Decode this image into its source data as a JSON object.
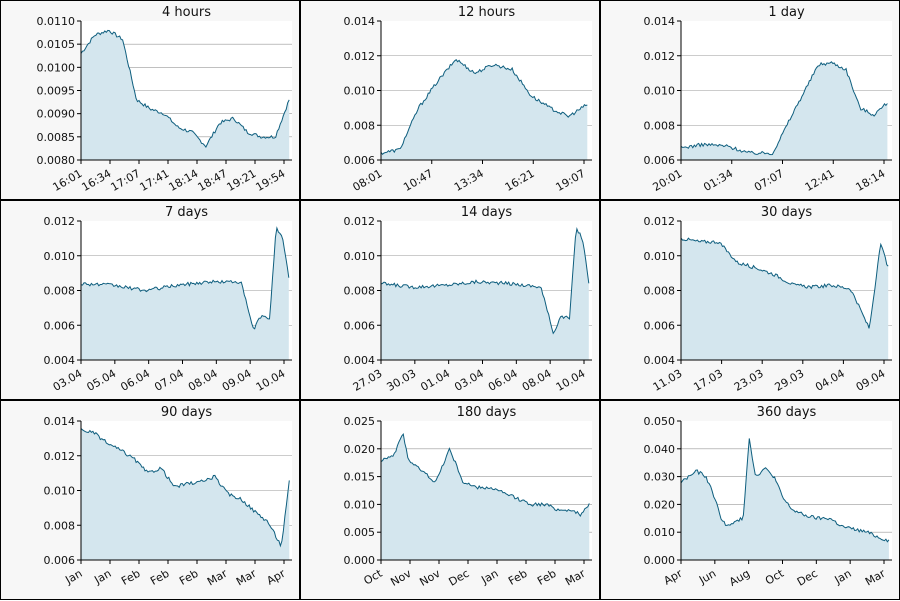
{
  "colors": {
    "line": "#0e5e7e",
    "fill": "#d4e6ee",
    "plot_bg": "#ffffff",
    "grid": "#9a9a9a",
    "axis": "#000000",
    "panel_bg": "#f7f7f7"
  },
  "chart_data": [
    {
      "type": "area",
      "title": "4 hours",
      "xticks": [
        "16:01",
        "16:34",
        "17:07",
        "17:41",
        "18:14",
        "18:47",
        "19:21",
        "19:54"
      ],
      "yticks": [
        "0.0080",
        "0.0085",
        "0.0090",
        "0.0095",
        "0.0100",
        "0.0105",
        "0.0110"
      ],
      "ylim": [
        0.008,
        0.011
      ],
      "x": [
        0,
        0.5,
        1,
        1.5,
        2,
        2.5,
        3,
        3.5,
        4,
        4.5,
        5,
        5.5,
        6,
        6.5,
        7,
        7.5
      ],
      "y": [
        0.0103,
        0.0107,
        0.0108,
        0.0106,
        0.0093,
        0.0091,
        0.009,
        0.0087,
        0.0086,
        0.0083,
        0.0088,
        0.0089,
        0.0086,
        0.0085,
        0.0085,
        0.0093
      ],
      "xlim": [
        0,
        7.6
      ]
    },
    {
      "type": "area",
      "title": "12 hours",
      "xticks": [
        "08:01",
        "10:47",
        "13:34",
        "16:21",
        "19:07"
      ],
      "yticks": [
        "0.006",
        "0.008",
        "0.010",
        "0.012",
        "0.014"
      ],
      "ylim": [
        0.006,
        0.014
      ],
      "x": [
        0,
        0.4,
        0.8,
        1.2,
        1.6,
        2.0,
        2.4,
        2.8,
        3.2,
        3.6,
        4.0,
        4.4
      ],
      "y": [
        0.0064,
        0.0066,
        0.009,
        0.0105,
        0.0118,
        0.011,
        0.0115,
        0.0112,
        0.0097,
        0.009,
        0.0085,
        0.0092
      ],
      "xlim": [
        0,
        4.5
      ]
    },
    {
      "type": "area",
      "title": "1 day",
      "xticks": [
        "20:01",
        "01:34",
        "07:07",
        "12:41",
        "18:14"
      ],
      "yticks": [
        "0.006",
        "0.008",
        "0.010",
        "0.012",
        "0.014"
      ],
      "ylim": [
        0.006,
        0.014
      ],
      "x": [
        0,
        0.5,
        1.0,
        1.5,
        2.0,
        2.5,
        3.0,
        3.3,
        3.6,
        3.9,
        4.2,
        4.5
      ],
      "y": [
        0.0067,
        0.0069,
        0.0068,
        0.0064,
        0.0064,
        0.009,
        0.0115,
        0.0116,
        0.0112,
        0.009,
        0.0086,
        0.0093
      ],
      "xlim": [
        0,
        4.6
      ]
    },
    {
      "type": "area",
      "title": "7 days",
      "xticks": [
        "03.04",
        "05.04",
        "06.04",
        "07.04",
        "08.04",
        "09.04",
        "10.04"
      ],
      "yticks": [
        "0.004",
        "0.006",
        "0.008",
        "0.010",
        "0.012"
      ],
      "ylim": [
        0.004,
        0.012
      ],
      "x": [
        0,
        1,
        2,
        3,
        4,
        5,
        5.4,
        5.6,
        5.9,
        6.1,
        6.3,
        6.5
      ],
      "y": [
        0.0084,
        0.0083,
        0.008,
        0.0083,
        0.0085,
        0.0085,
        0.0057,
        0.0065,
        0.0064,
        0.0116,
        0.011,
        0.0088
      ],
      "xlim": [
        0,
        6.6
      ]
    },
    {
      "type": "area",
      "title": "14 days",
      "xticks": [
        "27.03",
        "30.03",
        "01.04",
        "03.04",
        "06.04",
        "08.04",
        "10.04"
      ],
      "yticks": [
        "0.004",
        "0.006",
        "0.008",
        "0.010",
        "0.012"
      ],
      "ylim": [
        0.004,
        0.012
      ],
      "x": [
        0,
        1,
        2,
        3,
        4,
        5,
        5.4,
        5.6,
        5.9,
        6.1,
        6.3,
        6.5
      ],
      "y": [
        0.0084,
        0.0082,
        0.0083,
        0.0085,
        0.0084,
        0.0082,
        0.0055,
        0.0065,
        0.0064,
        0.0116,
        0.011,
        0.0085
      ],
      "xlim": [
        0,
        6.6
      ]
    },
    {
      "type": "area",
      "title": "30 days",
      "xticks": [
        "11.03",
        "17.03",
        "23.03",
        "29.03",
        "04.04",
        "09.04"
      ],
      "yticks": [
        "0.004",
        "0.006",
        "0.008",
        "0.010",
        "0.012"
      ],
      "ylim": [
        0.004,
        0.012
      ],
      "x": [
        0,
        0.5,
        1,
        1.5,
        2,
        2.5,
        3,
        3.5,
        4,
        4.5,
        5,
        5.3,
        5.5
      ],
      "y": [
        0.011,
        0.0108,
        0.0108,
        0.0096,
        0.0093,
        0.0089,
        0.0083,
        0.0082,
        0.0083,
        0.0081,
        0.0058,
        0.0107,
        0.0093
      ],
      "xlim": [
        0,
        5.6
      ]
    },
    {
      "type": "area",
      "title": "90 days",
      "xticks": [
        "Jan",
        "Jan",
        "Feb",
        "Feb",
        "Feb",
        "Mar",
        "Mar",
        "Apr"
      ],
      "yticks": [
        "0.006",
        "0.008",
        "0.010",
        "0.012",
        "0.014"
      ],
      "ylim": [
        0.006,
        0.014
      ],
      "x": [
        0,
        0.5,
        1,
        1.5,
        2,
        2.5,
        3,
        3.5,
        4,
        4.5,
        5,
        5.5,
        6,
        6.5,
        7,
        7.5,
        7.8
      ],
      "y": [
        0.0135,
        0.0133,
        0.0127,
        0.0123,
        0.0118,
        0.011,
        0.0113,
        0.0102,
        0.0104,
        0.0105,
        0.0108,
        0.0098,
        0.0095,
        0.0088,
        0.0082,
        0.0068,
        0.0105
      ],
      "xlim": [
        0,
        7.9
      ]
    },
    {
      "type": "area",
      "title": "180 days",
      "xticks": [
        "Oct",
        "Nov",
        "Nov",
        "Dec",
        "Jan",
        "Feb",
        "Feb",
        "Mar"
      ],
      "yticks": [
        "0.000",
        "0.005",
        "0.010",
        "0.015",
        "0.020",
        "0.025"
      ],
      "ylim": [
        0.0,
        0.025
      ],
      "x": [
        0,
        0.5,
        0.8,
        1,
        1.5,
        2,
        2.5,
        3,
        3.5,
        4,
        4.5,
        5,
        5.5,
        6,
        6.5,
        7,
        7.3,
        7.6
      ],
      "y": [
        0.018,
        0.019,
        0.023,
        0.018,
        0.016,
        0.014,
        0.02,
        0.014,
        0.013,
        0.013,
        0.012,
        0.011,
        0.01,
        0.01,
        0.009,
        0.009,
        0.008,
        0.01
      ],
      "xlim": [
        0,
        7.7
      ]
    },
    {
      "type": "area",
      "title": "360 days",
      "xticks": [
        "Apr",
        "Jun",
        "Aug",
        "Oct",
        "Dec",
        "Jan",
        "Mar"
      ],
      "yticks": [
        "0.000",
        "0.010",
        "0.020",
        "0.030",
        "0.040",
        "0.050"
      ],
      "ylim": [
        0.0,
        0.05
      ],
      "x": [
        0,
        0.5,
        0.8,
        1.0,
        1.3,
        1.5,
        1.8,
        2.0,
        2.2,
        2.4,
        2.7,
        3.0,
        3.3,
        3.6,
        4.0,
        4.4,
        4.8,
        5.2,
        5.6,
        6.0,
        6.4,
        6.7
      ],
      "y": [
        0.028,
        0.032,
        0.03,
        0.025,
        0.015,
        0.012,
        0.014,
        0.015,
        0.044,
        0.03,
        0.033,
        0.03,
        0.022,
        0.018,
        0.016,
        0.015,
        0.015,
        0.012,
        0.011,
        0.01,
        0.008,
        0.007
      ],
      "xlim": [
        0,
        6.8
      ]
    }
  ]
}
